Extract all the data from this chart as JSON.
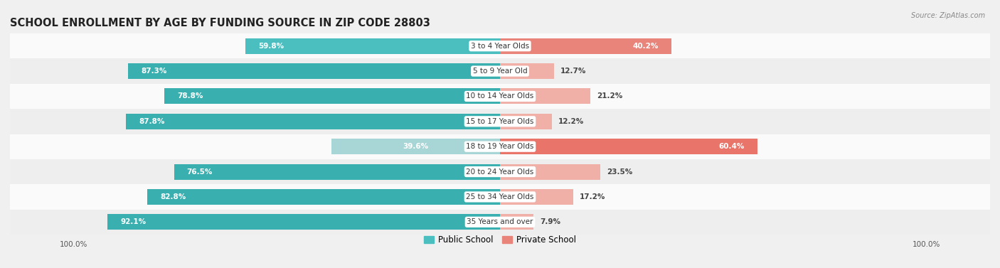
{
  "title": "SCHOOL ENROLLMENT BY AGE BY FUNDING SOURCE IN ZIP CODE 28803",
  "source": "Source: ZipAtlas.com",
  "categories": [
    "3 to 4 Year Olds",
    "5 to 9 Year Old",
    "10 to 14 Year Olds",
    "15 to 17 Year Olds",
    "18 to 19 Year Olds",
    "20 to 24 Year Olds",
    "25 to 34 Year Olds",
    "35 Years and over"
  ],
  "public_pct": [
    59.8,
    87.3,
    78.8,
    87.8,
    39.6,
    76.5,
    82.8,
    92.1
  ],
  "private_pct": [
    40.2,
    12.7,
    21.2,
    12.2,
    60.4,
    23.5,
    17.2,
    7.9
  ],
  "public_colors": [
    "#4BBFBF",
    "#3AAFAF",
    "#3AAFAF",
    "#3AAFAF",
    "#A8D5D5",
    "#3AAFAF",
    "#3AAFAF",
    "#3AAFAF"
  ],
  "private_colors": [
    "#E8847A",
    "#F0B0A8",
    "#F0B0A8",
    "#F0B0A8",
    "#E8746A",
    "#F0B0A8",
    "#F0B0A8",
    "#F0B0A8"
  ],
  "background_color": "#F0F0F0",
  "row_bg_colors": [
    "#FAFAFA",
    "#EEEEEE",
    "#FAFAFA",
    "#EEEEEE",
    "#FAFAFA",
    "#EEEEEE",
    "#FAFAFA",
    "#EEEEEE"
  ],
  "label_color_white": "#FFFFFF",
  "label_color_dark": "#444444",
  "title_fontsize": 10.5,
  "label_fontsize": 7.5,
  "category_fontsize": 7.5,
  "axis_fontsize": 7.5,
  "legend_fontsize": 8.5,
  "bar_height": 0.62,
  "xlim_left": -115,
  "xlim_right": 115
}
